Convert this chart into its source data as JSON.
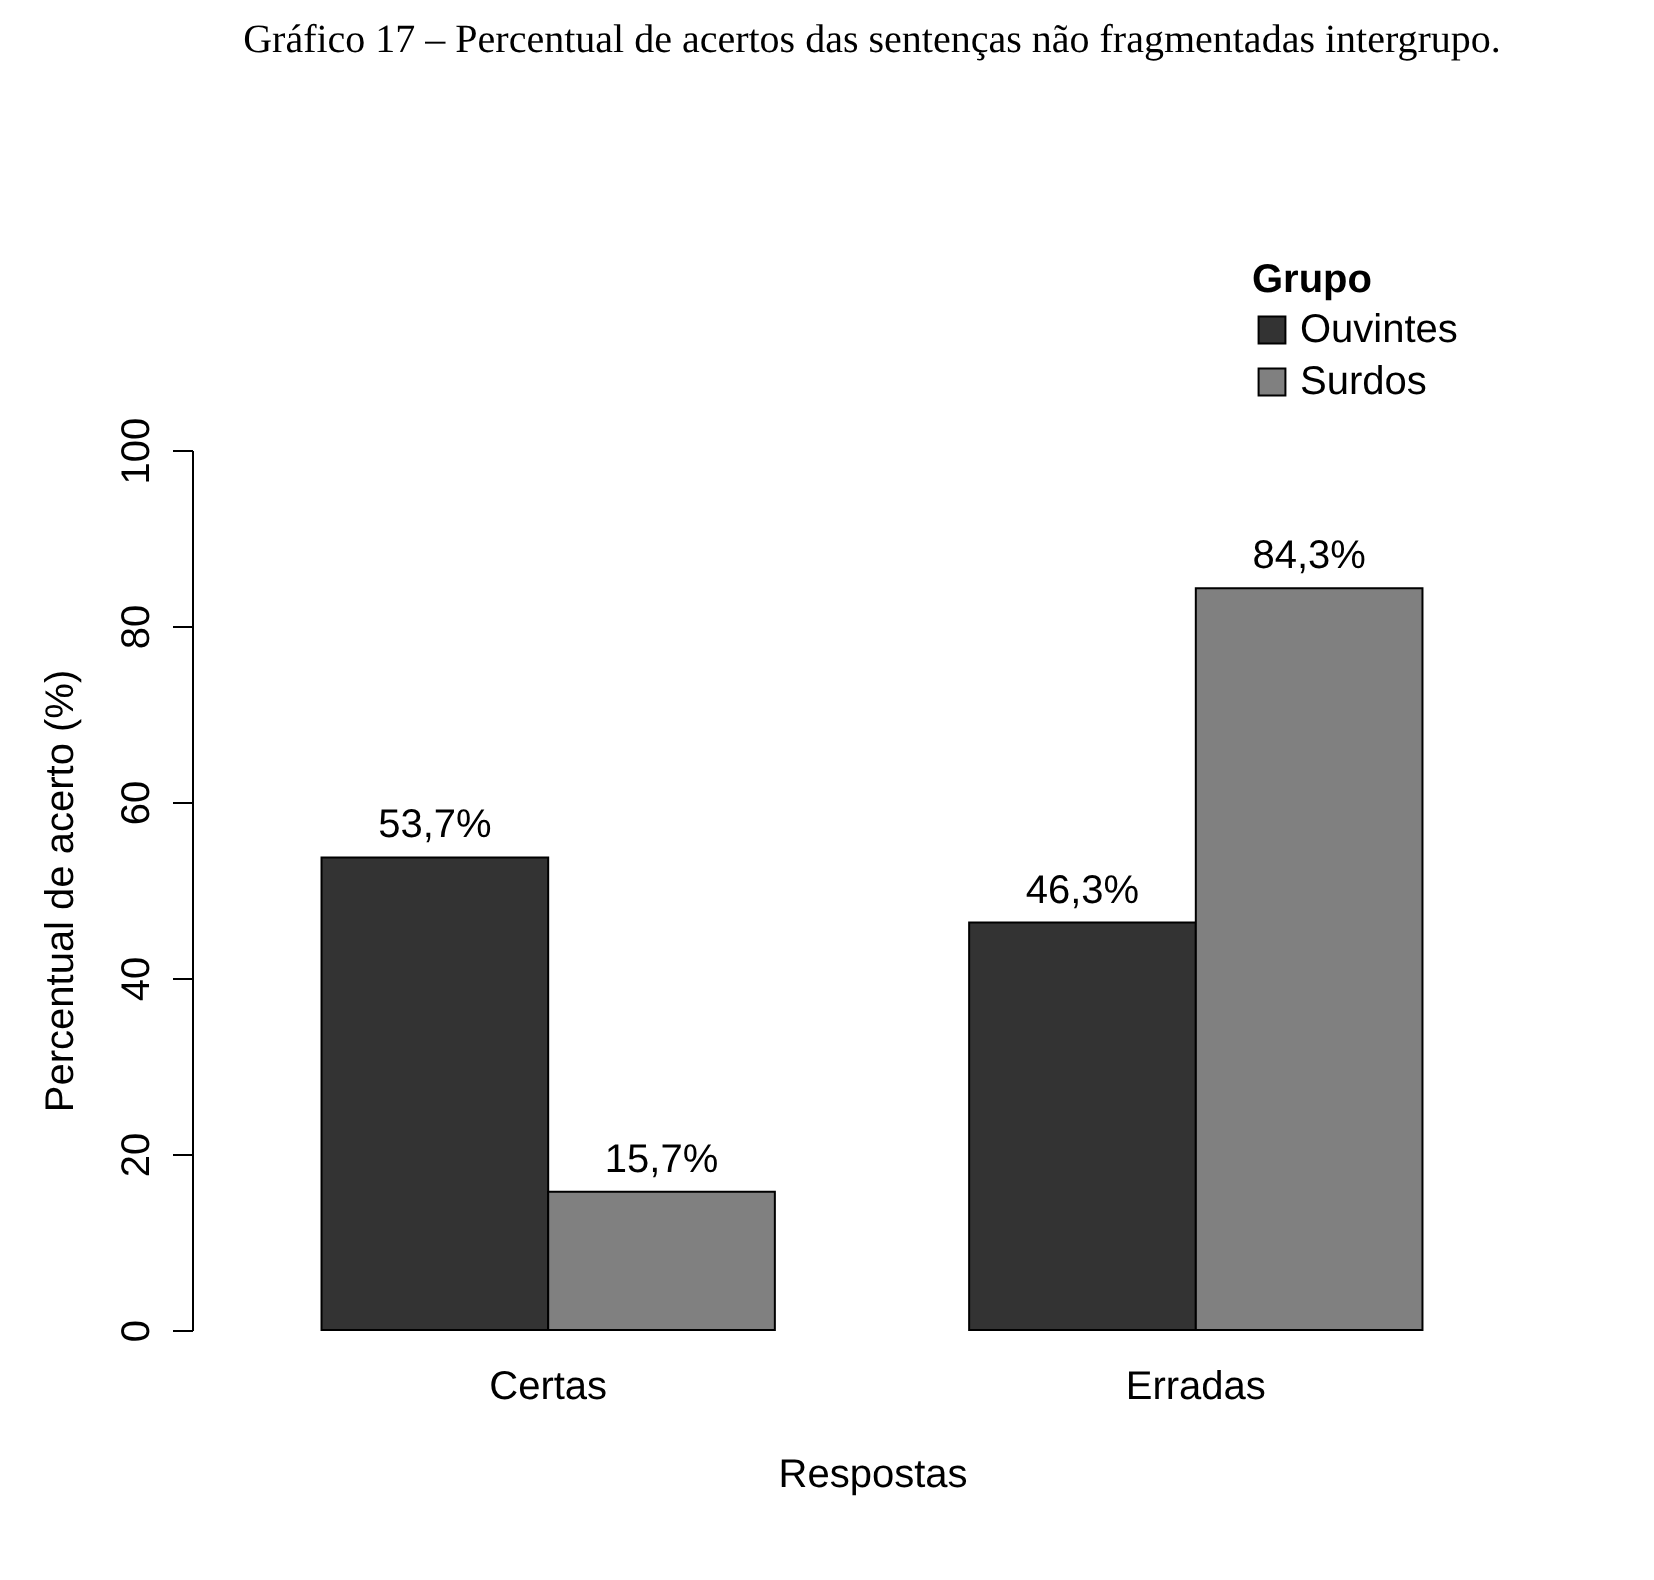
{
  "chart_data": {
    "type": "bar",
    "title": "Gráfico 17 – Percentual de acertos das sentenças não fragmentadas intergrupo.",
    "xlabel": "Respostas",
    "ylabel": "Percentual de acerto (%)",
    "legend_title": "Grupo",
    "categories": [
      "Certas",
      "Erradas"
    ],
    "series": [
      {
        "name": "Ouvintes",
        "color": "#333333",
        "values": [
          53.7,
          46.3
        ],
        "value_labels": [
          "53,7%",
          "46,3%"
        ]
      },
      {
        "name": "Surdos",
        "color": "#808080",
        "values": [
          15.7,
          84.3
        ],
        "value_labels": [
          "15,7%",
          "84,3%"
        ]
      }
    ],
    "ylim": [
      0,
      100
    ],
    "yticks": [
      0,
      20,
      40,
      60,
      80,
      100
    ],
    "grid": false,
    "legend": "top right"
  }
}
